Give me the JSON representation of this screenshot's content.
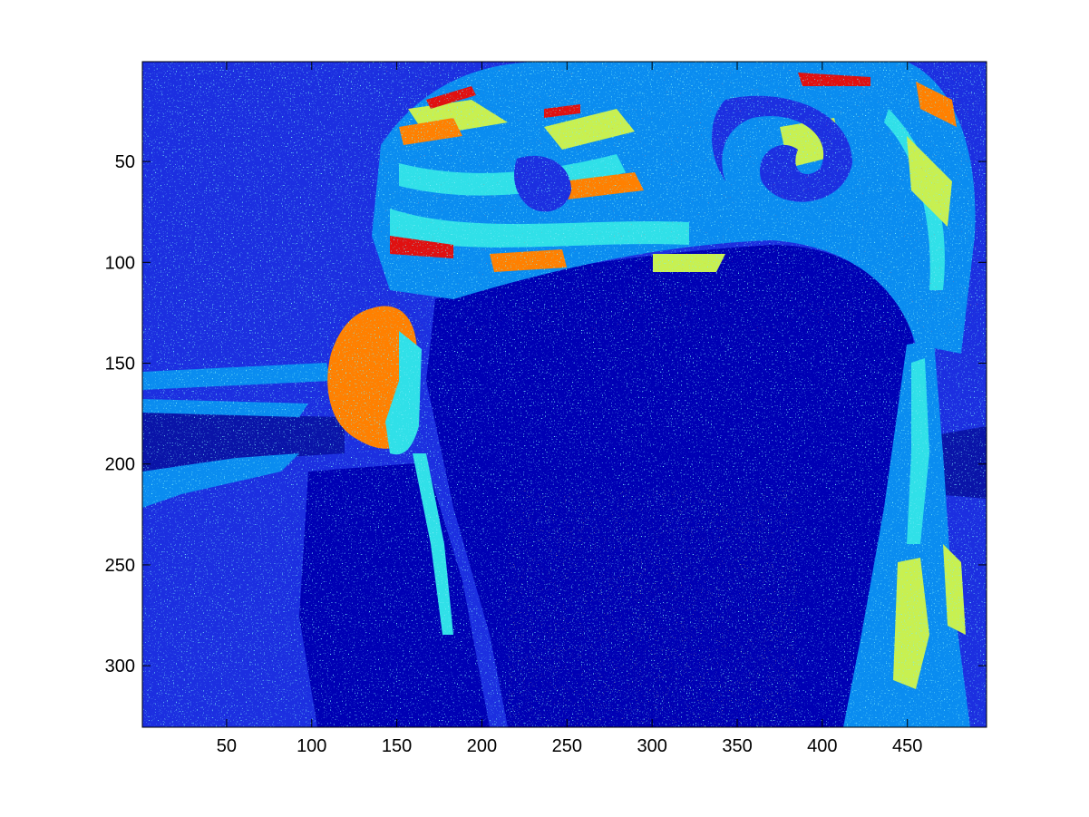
{
  "chart_data": {
    "type": "heatmap",
    "title": "",
    "xlabel": "",
    "ylabel": "",
    "colormap": "jet",
    "xlim": [
      0.5,
      496.5
    ],
    "ylim": [
      0.5,
      330.5
    ],
    "y_reversed": true,
    "grid": false,
    "x_ticks": [
      50,
      100,
      150,
      200,
      250,
      300,
      350,
      400,
      450
    ],
    "y_ticks": [
      50,
      100,
      150,
      200,
      250,
      300
    ],
    "x_tick_labels": [
      "50",
      "100",
      "150",
      "200",
      "250",
      "300",
      "350",
      "400",
      "450"
    ],
    "y_tick_labels": [
      "50",
      "100",
      "150",
      "200",
      "250",
      "300"
    ],
    "colors": {
      "background": "#1c2fe0",
      "dark": "#0a14a8",
      "deep": "#0000b4",
      "light_blue": "#0a8cf0",
      "cyan": "#30e0e8",
      "yellow_green": "#c8f050",
      "yellow": "#f0f000",
      "orange": "#ff8000",
      "red": "#e01010"
    }
  }
}
